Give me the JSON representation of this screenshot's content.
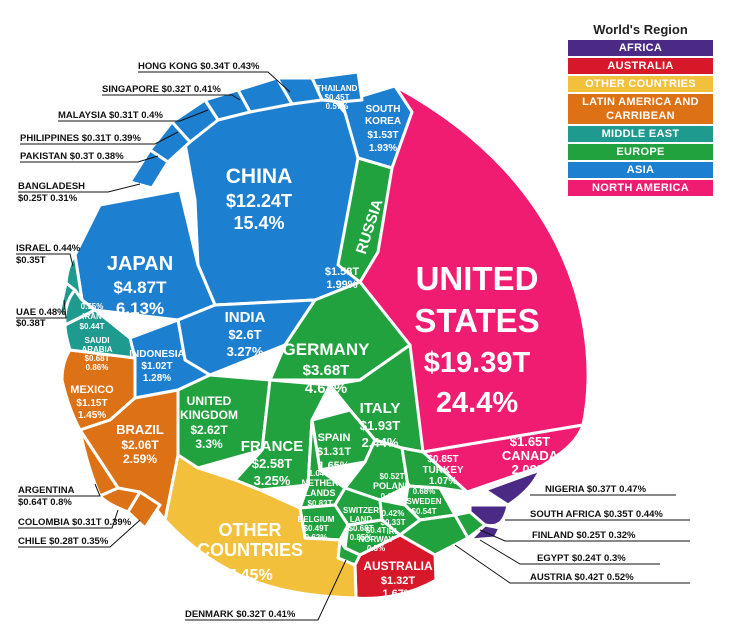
{
  "chart_data": {
    "type": "voronoi-treemap",
    "legend": {
      "title": "World's Region",
      "placement": "top-right",
      "items": [
        {
          "region": "africa",
          "label": "AFRICA",
          "color": "#4B2A86"
        },
        {
          "region": "australia",
          "label": "AUSTRALIA",
          "color": "#D7182A"
        },
        {
          "region": "other",
          "label": "OTHER COUNTRIES",
          "color": "#F2C03A"
        },
        {
          "region": "latam",
          "label": "LATIN AMERICA AND CARRIBEAN",
          "color": "#DD7116"
        },
        {
          "region": "mideast",
          "label": "MIDDLE EAST",
          "color": "#1E9A8E"
        },
        {
          "region": "europe",
          "label": "EUROPE",
          "color": "#21A23F"
        },
        {
          "region": "asia",
          "label": "ASIA",
          "color": "#1D7FD0"
        },
        {
          "region": "namerica",
          "label": "NORTH AMERICA",
          "color": "#F01C72"
        }
      ]
    },
    "countries": [
      {
        "name": "UNITED STATES",
        "region": "namerica",
        "gdp": "$19.39T",
        "share": "24.4%"
      },
      {
        "name": "CHINA",
        "region": "asia",
        "gdp": "$12.24T",
        "share": "15.4%"
      },
      {
        "name": "JAPAN",
        "region": "asia",
        "gdp": "$4.87T",
        "share": "6.13%"
      },
      {
        "name": "GERMANY",
        "region": "europe",
        "gdp": "$3.68T",
        "share": "4.63%"
      },
      {
        "name": "INDIA",
        "region": "asia",
        "gdp": "$2.6T",
        "share": "3.27%"
      },
      {
        "name": "UNITED KINGDOM",
        "region": "europe",
        "gdp": "$2.62T",
        "share": "3.3%"
      },
      {
        "name": "FRANCE",
        "region": "europe",
        "gdp": "$2.58T",
        "share": "3.25%"
      },
      {
        "name": "OTHER COUNTRIES",
        "region": "other",
        "gdp": "",
        "share": "7.45%"
      },
      {
        "name": "BRAZIL",
        "region": "latam",
        "gdp": "$2.06T",
        "share": "2.59%"
      },
      {
        "name": "ITALY",
        "region": "europe",
        "gdp": "$1.93T",
        "share": "2.44%"
      },
      {
        "name": "CANADA",
        "region": "namerica",
        "gdp": "$1.65T",
        "share": "2.08%"
      },
      {
        "name": "RUSSIA",
        "region": "europe",
        "gdp": "$1.58T",
        "share": "1.99%"
      },
      {
        "name": "SOUTH KOREA",
        "region": "asia",
        "gdp": "$1.53T",
        "share": "1.93%"
      },
      {
        "name": "AUSTRALIA",
        "region": "australia",
        "gdp": "$1.32T",
        "share": "1.67%"
      },
      {
        "name": "SPAIN",
        "region": "europe",
        "gdp": "$1.31T",
        "share": "1.65%"
      },
      {
        "name": "MEXICO",
        "region": "latam",
        "gdp": "$1.15T",
        "share": "1.45%"
      },
      {
        "name": "INDONESIA",
        "region": "asia",
        "gdp": "$1.02T",
        "share": "1.28%"
      },
      {
        "name": "TURKEY",
        "region": "europe",
        "gdp": "$0.85T",
        "share": "1.07%"
      },
      {
        "name": "NETHERLANDS",
        "region": "europe",
        "gdp": "$0.83T",
        "share": "1.04%"
      },
      {
        "name": "SAUDI ARABIA",
        "region": "mideast",
        "gdp": "$0.68T",
        "share": "0.86%"
      },
      {
        "name": "SWITZERLAND",
        "region": "europe",
        "gdp": "$0.68T",
        "share": "0.85%"
      },
      {
        "name": "ARGENTINA",
        "region": "latam",
        "gdp": "$0.64T",
        "share": "0.8%"
      },
      {
        "name": "SWEDEN",
        "region": "europe",
        "gdp": "$0.54T",
        "share": "0.68%"
      },
      {
        "name": "POLAND",
        "region": "europe",
        "gdp": "$0.52T",
        "share": "0.66%"
      },
      {
        "name": "BELGIUM",
        "region": "europe",
        "gdp": "$0.49T",
        "share": "0.62%"
      },
      {
        "name": "THAILAND",
        "region": "asia",
        "gdp": "$0.45T",
        "share": "0.57%"
      },
      {
        "name": "IRAN",
        "region": "mideast",
        "gdp": "$0.44T",
        "share": "0.55%"
      },
      {
        "name": "AUSTRIA",
        "region": "europe",
        "gdp": "$0.42T",
        "share": "0.52%"
      },
      {
        "name": "NORWAY",
        "region": "europe",
        "gdp": "$0.4T",
        "share": "0.5%"
      },
      {
        "name": "UAE",
        "region": "mideast",
        "gdp": "$0.38T",
        "share": "0.48%"
      },
      {
        "name": "NIGERIA",
        "region": "africa",
        "gdp": "$0.37T",
        "share": "0.47%"
      },
      {
        "name": "ISRAEL",
        "region": "mideast",
        "gdp": "$0.35T",
        "share": "0.44%"
      },
      {
        "name": "SOUTH AFRICA",
        "region": "africa",
        "gdp": "$0.35T",
        "share": "0.44%"
      },
      {
        "name": "HONG KONG",
        "region": "asia",
        "gdp": "$0.34T",
        "share": "0.43%"
      },
      {
        "name": "IRL",
        "region": "europe",
        "gdp": "$0.33T",
        "share": "0.42%"
      },
      {
        "name": "DENMARK",
        "region": "europe",
        "gdp": "$0.32T",
        "share": "0.41%"
      },
      {
        "name": "SINGAPORE",
        "region": "asia",
        "gdp": "$0.32T",
        "share": "0.41%"
      },
      {
        "name": "MALAYSIA",
        "region": "asia",
        "gdp": "$0.31T",
        "share": "0.4%"
      },
      {
        "name": "PHILIPPINES",
        "region": "asia",
        "gdp": "$0.31T",
        "share": "0.39%"
      },
      {
        "name": "COLOMBIA",
        "region": "latam",
        "gdp": "$0.31T",
        "share": "0.39%"
      },
      {
        "name": "PAKISTAN",
        "region": "asia",
        "gdp": "$0.3T",
        "share": "0.38%"
      },
      {
        "name": "CHILE",
        "region": "latam",
        "gdp": "$0.28T",
        "share": "0.35%"
      },
      {
        "name": "FINLAND",
        "region": "europe",
        "gdp": "$0.25T",
        "share": "0.32%"
      },
      {
        "name": "BANGLADESH",
        "region": "asia",
        "gdp": "$0.25T",
        "share": "0.31%"
      },
      {
        "name": "EGYPT",
        "region": "africa",
        "gdp": "$0.24T",
        "share": "0.3%"
      }
    ],
    "labels": {
      "us": [
        "UNITED",
        "STATES",
        "$19.39T",
        "24.4%"
      ],
      "china": [
        "CHINA",
        "$12.24T",
        "15.4%"
      ],
      "japan": [
        "JAPAN",
        "$4.87T",
        "6.13%"
      ],
      "germany": [
        "GERMANY",
        "$3.68T",
        "4.63%"
      ],
      "india": [
        "INDIA",
        "$2.6T",
        "3.27%"
      ],
      "uk": [
        "UNITED",
        "KINGDOM",
        "$2.62T",
        "3.3%"
      ],
      "france": [
        "FRANCE",
        "$2.58T",
        "3.25%"
      ],
      "other": [
        "OTHER",
        "COUNTRIES",
        "7.45%"
      ],
      "brazil": [
        "BRAZIL",
        "$2.06T",
        "2.59%"
      ],
      "italy": [
        "ITALY",
        "$1.93T",
        "2.44%"
      ],
      "canada": [
        "$1.65T",
        "CANADA",
        "2.08%"
      ],
      "russia": [
        "RUSSIA"
      ],
      "russia_val": [
        "$1.58T",
        "1.99%"
      ],
      "skorea": [
        "SOUTH",
        "KOREA",
        "$1.53T",
        "1.93%"
      ],
      "australia": [
        "AUSTRALIA",
        "$1.32T",
        "1.67%"
      ],
      "spain": [
        "SPAIN",
        "$1.31T",
        "1.65%"
      ],
      "mexico": [
        "MEXICO",
        "$1.15T",
        "1.45%"
      ],
      "indonesia": [
        "INDONESIA",
        "$1.02T",
        "1.28%"
      ],
      "turkey": [
        "$0.85T",
        "TURKEY",
        "1.07%"
      ],
      "netherlands": [
        "1.04%",
        "NETHER",
        "LANDS",
        "$0.83T"
      ],
      "saudi": [
        "SAUDI",
        "ARABIA",
        "$0.68T",
        "0.86%"
      ],
      "switzerland": [
        "SWITZER",
        "LAND",
        "$0.68T",
        "0.85%"
      ],
      "sweden": [
        "0.68%",
        "SWEDEN",
        "$0.54T"
      ],
      "poland": [
        "$0.52T",
        "POLAND",
        "0.66%"
      ],
      "belgium": [
        "BELGIUM",
        "$0.49T",
        "0.62%"
      ],
      "thailand": [
        "THAILAND",
        "$0.45T",
        "0.57%"
      ],
      "iran": [
        "0.55%",
        "IRAN",
        "$0.44T"
      ],
      "norway": [
        "$0.4T",
        "NORWAY",
        "0.5%"
      ],
      "irl": [
        "0.42%",
        "$0.33T",
        "IRL"
      ]
    },
    "callouts": {
      "hongkong": "HONG KONG  $0.34T  0.43%",
      "singapore": "SINGAPORE  $0.32T  0.41%",
      "malaysia": "MALAYSIA  $0.31T   0.4%",
      "philippines": "PHILIPPINES  $0.31T  0.39%",
      "pakistan": "PAKISTAN  $0.3T  0.38%",
      "bangladesh1": "BANGLADESH",
      "bangladesh2": "$0.25T  0.31%",
      "israel1": "ISRAEL  0.44%",
      "israel2": "$0.35T",
      "uae1": "UAE  0.48%",
      "uae2": "$0.38T",
      "argentina1": "ARGENTINA",
      "argentina2": "$0.64T  0.8%",
      "colombia": "COLOMBIA  $0.31T  0.39%",
      "chile": "CHILE  $0.28T  0.35%",
      "denmark": "DENMARK  $0.32T  0.41%",
      "nigeria": "NIGERIA  $0.37T  0.47%",
      "southafrica": "SOUTH AFRICA  $0.35T  0.44%",
      "finland": "FINLAND  $0.25T  0.32%",
      "egypt": "EGYPT  $0.24T   0.3%",
      "austria": "AUSTRIA  $0.42T  0.52%"
    }
  }
}
